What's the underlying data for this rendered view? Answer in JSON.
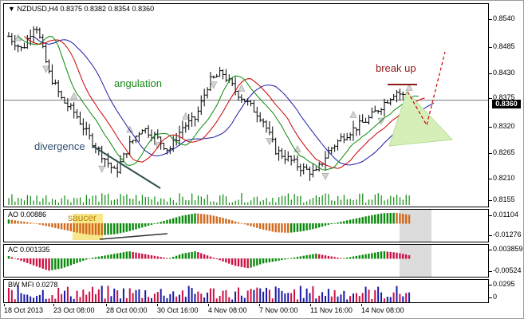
{
  "chart": {
    "symbol_line": "NZDUSD,H4",
    "ohlc": [
      "0.8375",
      "0.8382",
      "0.8354",
      "0.8360"
    ],
    "current_price": "0.8360",
    "annotations": {
      "angulation": "angulation",
      "divergence": "divergence",
      "break_up": "break up",
      "saucer": "saucer"
    },
    "colors": {
      "ma_red": "#cc0000",
      "ma_green": "#0a8a0a",
      "ma_blue": "#1a1aa8",
      "ao_green": "#0a8a0a",
      "ao_orange": "#d2691e",
      "ac_green": "#0a8a0a",
      "ac_red": "#cc1144",
      "volume_green": "#0a8a0a",
      "mfi_red": "#cc1144",
      "mfi_blue": "#1a1aa8",
      "annotation_green": "#1a8a1a",
      "annotation_slate": "#2f4f6f",
      "annotation_darkred": "#8b1a1a"
    }
  },
  "price_axis": [
    "0.8540",
    "0.8485",
    "0.8430",
    "0.8375",
    "0.8320",
    "0.8265",
    "0.8210",
    "0.8155"
  ],
  "ao": {
    "label": "AO 0.00886",
    "axis": [
      "0.01104",
      "-0.01276"
    ]
  },
  "ac": {
    "label": "AC 0.001335",
    "axis": [
      "0.003859",
      "-0.00524"
    ]
  },
  "mfi": {
    "label": "BW MFI 0.0278",
    "axis": [
      "0.0295",
      "0"
    ]
  },
  "time_axis": [
    "18 Oct 2013",
    "23 Oct 08:00",
    "28 Oct 00:00",
    "30 Oct 16:00",
    "4 Nov 08:00",
    "7 Nov 00:00",
    "11 Nov 16:00",
    "14 Nov 08:00"
  ],
  "chart_data": {
    "type": "candlestick",
    "title": "NZDUSD,H4",
    "ylim": [
      0.8155,
      0.856
    ],
    "x": [
      "18 Oct 2013",
      "23 Oct 08:00",
      "28 Oct 00:00",
      "30 Oct 16:00",
      "4 Nov 08:00",
      "7 Nov 00:00",
      "11 Nov 16:00",
      "14 Nov 08:00"
    ],
    "close_path": [
      0.85,
      0.847,
      0.853,
      0.842,
      0.836,
      0.833,
      0.828,
      0.824,
      0.82,
      0.826,
      0.83,
      0.828,
      0.825,
      0.83,
      0.832,
      0.84,
      0.842,
      0.838,
      0.835,
      0.832,
      0.825,
      0.823,
      0.821,
      0.82,
      0.825,
      0.828,
      0.83,
      0.832,
      0.835,
      0.838,
      0.836
    ],
    "ao_values": [
      0.004,
      0.002,
      0.0,
      -0.003,
      -0.006,
      -0.009,
      -0.0115,
      -0.012,
      -0.011,
      -0.008,
      -0.004,
      0.0,
      0.004,
      0.008,
      0.0105,
      0.009,
      0.006,
      0.002,
      -0.002,
      -0.006,
      -0.009,
      -0.0095,
      -0.008,
      -0.005,
      -0.001,
      0.002,
      0.005,
      0.008,
      0.0105,
      0.011,
      0.00886
    ],
    "ac_values": [
      0.001,
      -0.001,
      -0.003,
      -0.005,
      -0.004,
      -0.002,
      0.0,
      0.001,
      0.002,
      0.003,
      0.002,
      0.001,
      0.0,
      0.002,
      0.003,
      0.001,
      -0.001,
      -0.003,
      -0.004,
      -0.002,
      -0.001,
      0.0,
      0.001,
      0.002,
      0.001,
      0.0,
      0.001,
      0.002,
      0.003,
      0.0025,
      0.001335
    ],
    "mfi_last": 0.0278
  }
}
